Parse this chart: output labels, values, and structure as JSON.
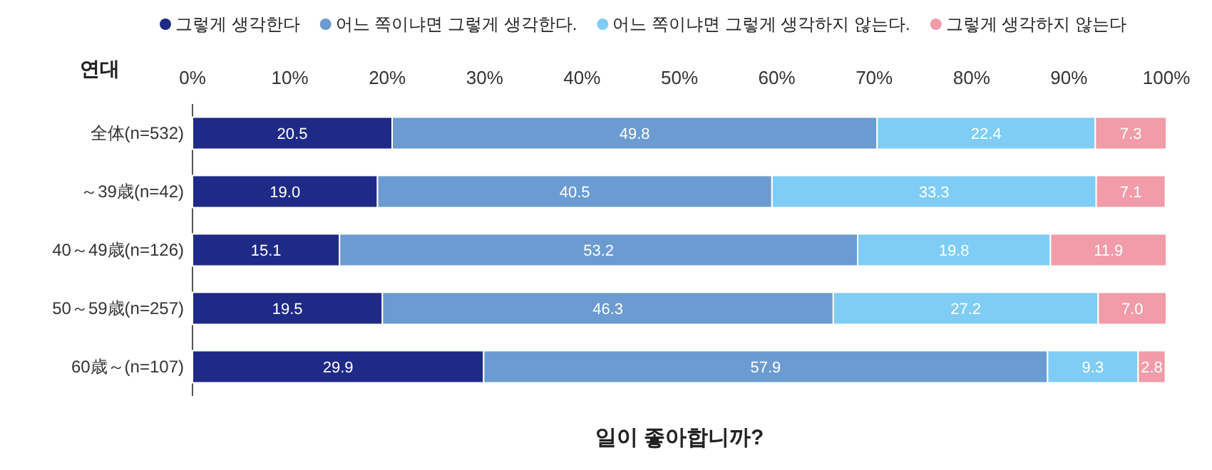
{
  "chart_data": {
    "type": "bar",
    "orientation": "horizontal",
    "stacked": true,
    "legend": "top",
    "title": "일이 좋아합니까?",
    "ylabel": "연대",
    "categories": [
      "全体(n=532)",
      "～39歳(n=42)",
      "40～49歳(n=126)",
      "50～59歳(n=257)",
      "60歳～(n=107)"
    ],
    "series": [
      {
        "name": "그렇게 생각한다",
        "color": "#1f2a86",
        "values": [
          20.5,
          19.0,
          15.1,
          19.5,
          29.9
        ],
        "value_labels": [
          "20.5",
          "19.0",
          "15.1",
          "19.5",
          "29.9"
        ]
      },
      {
        "name": "어느 쪽이냐면 그렇게 생각한다.",
        "color": "#6b9bd1",
        "values": [
          49.8,
          40.5,
          53.2,
          46.3,
          57.9
        ],
        "value_labels": [
          "49.8",
          "40.5",
          "53.2",
          "46.3",
          "57.9"
        ]
      },
      {
        "name": "어느 쪽이냐면 그렇게 생각하지 않는다.",
        "color": "#7fcdf5",
        "values": [
          22.4,
          33.3,
          19.8,
          27.2,
          9.3
        ],
        "value_labels": [
          "22.4",
          "33.3",
          "19.8",
          "27.2",
          "9.3"
        ]
      },
      {
        "name": "그렇게 생각하지 않는다",
        "color": "#f19ca8",
        "values": [
          7.3,
          7.1,
          11.9,
          7.0,
          2.8
        ],
        "value_labels": [
          "7.3",
          "7.1",
          "11.9",
          "7.0",
          "2.8"
        ]
      }
    ],
    "xlim": [
      0,
      100
    ],
    "xticks": [
      {
        "value": 0,
        "label": "0%"
      },
      {
        "value": 10,
        "label": "10%"
      },
      {
        "value": 20,
        "label": "20%"
      },
      {
        "value": 30,
        "label": "30%"
      },
      {
        "value": 40,
        "label": "40%"
      },
      {
        "value": 50,
        "label": "50%"
      },
      {
        "value": 60,
        "label": "60%"
      },
      {
        "value": 70,
        "label": "70%"
      },
      {
        "value": 80,
        "label": "80%"
      },
      {
        "value": 90,
        "label": "90%"
      },
      {
        "value": 100,
        "label": "100%"
      }
    ]
  }
}
